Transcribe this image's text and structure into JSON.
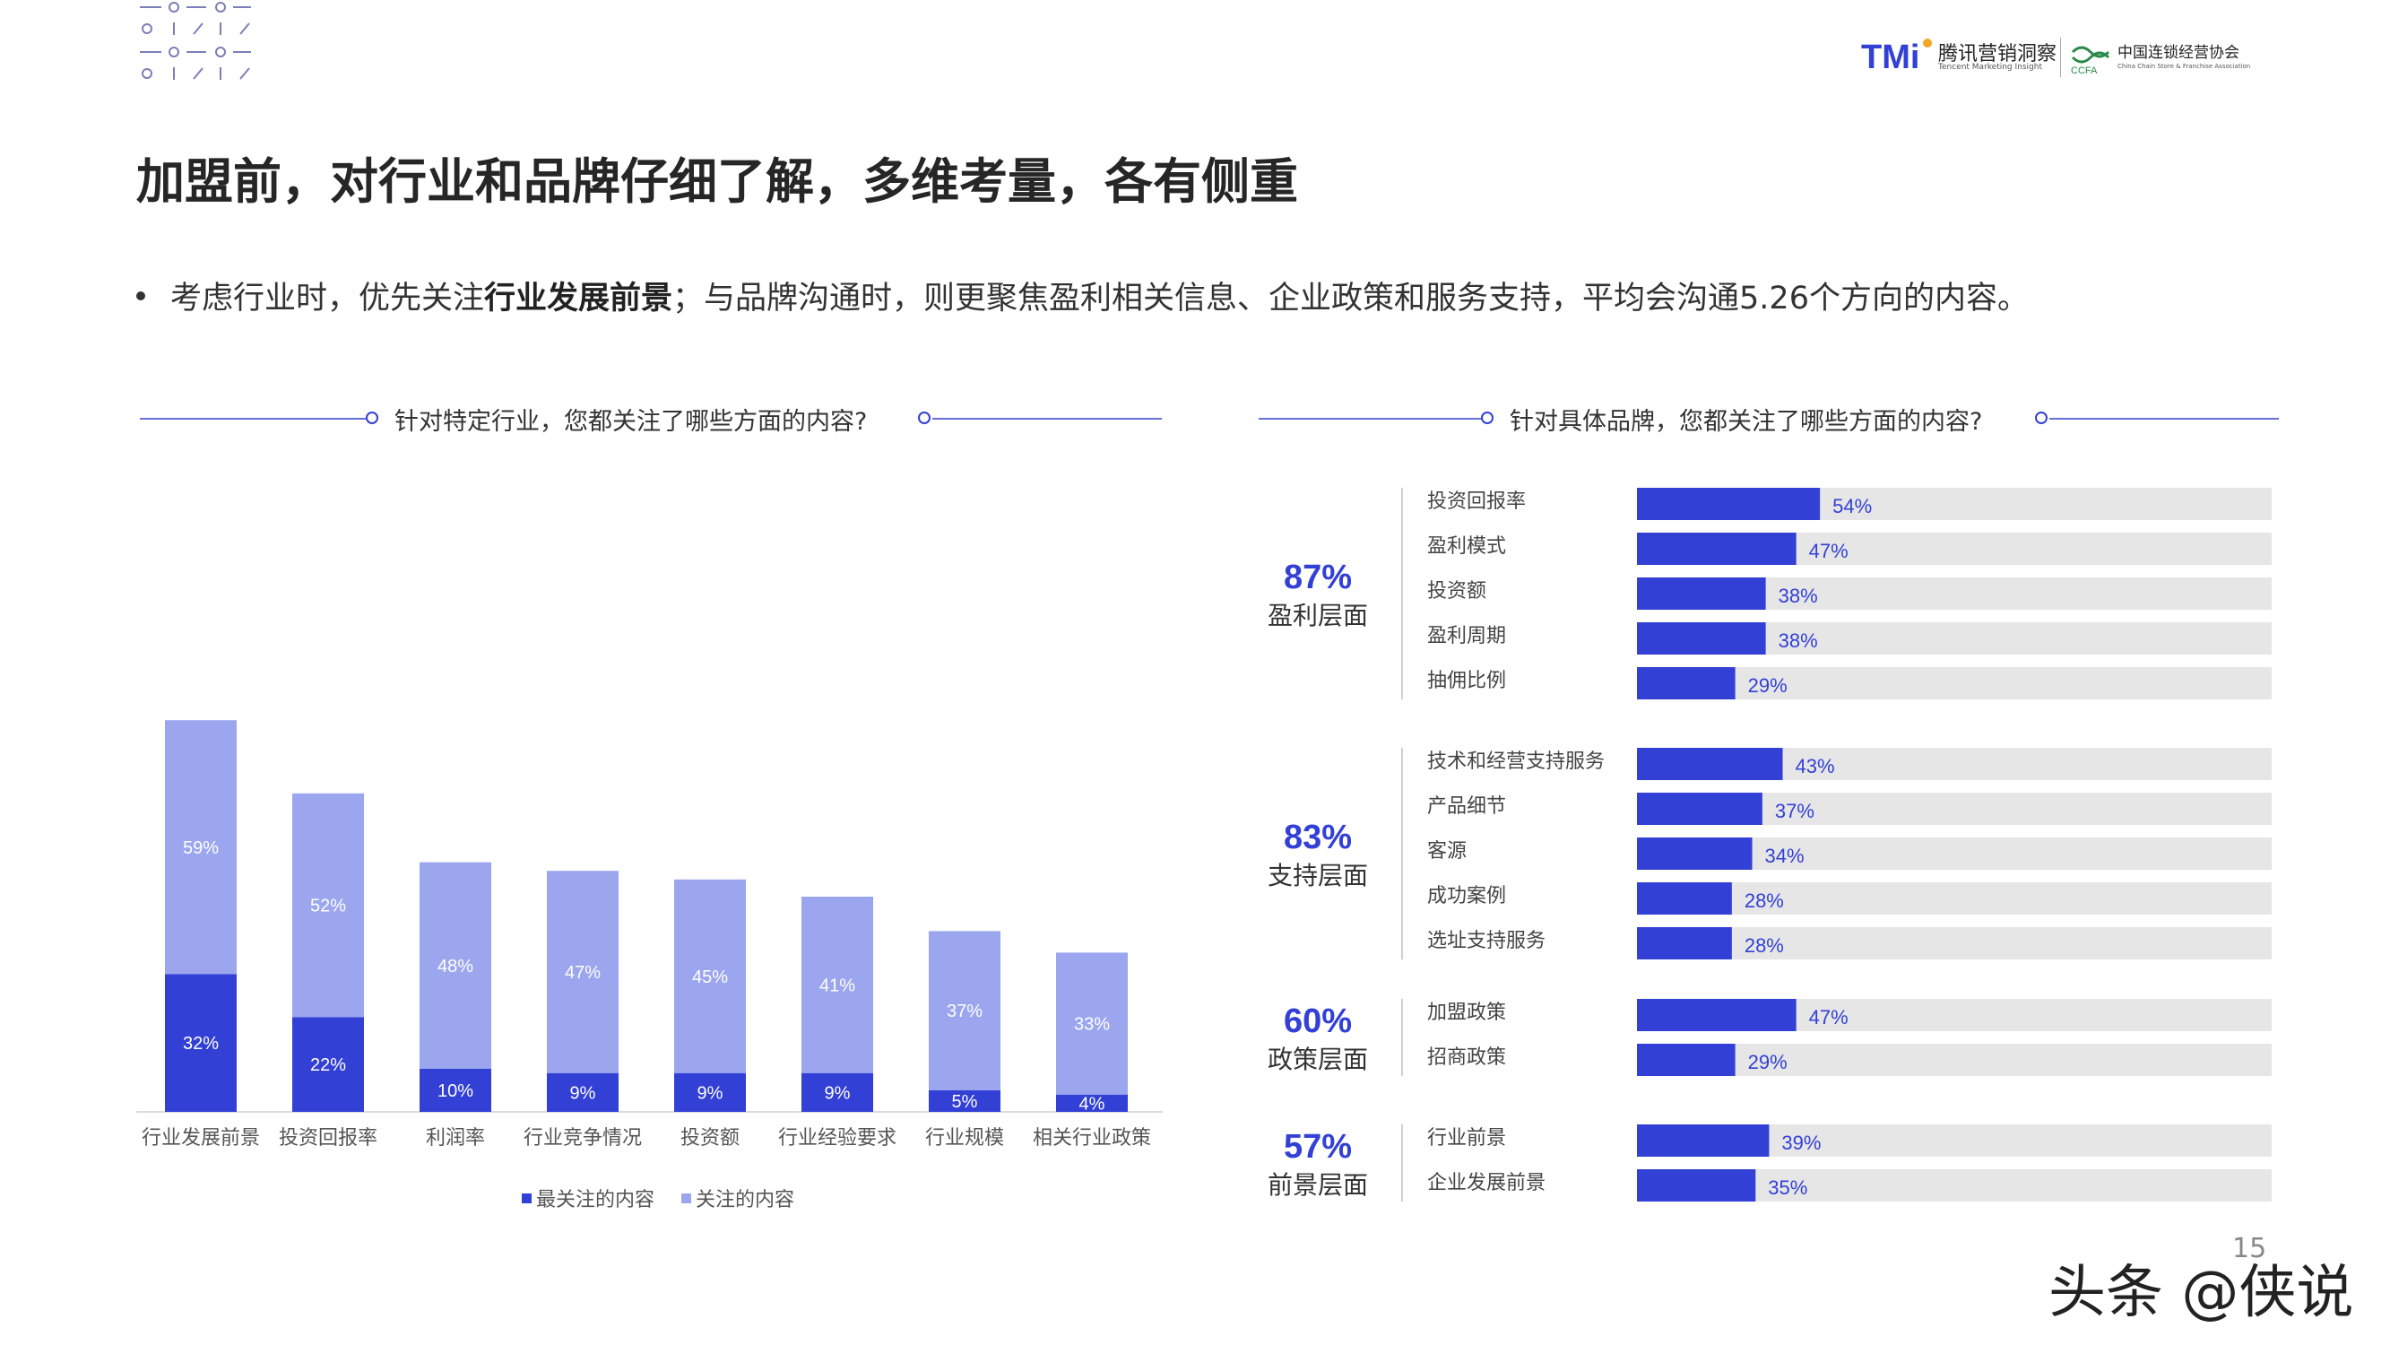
{
  "logos": {
    "tmi_mark": "TMi",
    "tmi_cn": "腾讯营销洞察",
    "tmi_en": "Tencent Marketing Insight",
    "ccfa_mark": "CCFA",
    "ccfa_cn": "中国连锁经营协会",
    "ccfa_en": "China Chain Store & Franchise Association"
  },
  "title": "加盟前，对行业和品牌仔细了解，多维考量，各有侧重",
  "bullet": {
    "part1": "考虑行业时，优先关注",
    "bold": "行业发展前景",
    "part2": "；与品牌沟通时，则更聚焦盈利相关信息、企业政策和服务支持，平均会沟通5.26个方向的内容。"
  },
  "page_number": "15",
  "watermark": "头条 @侠说",
  "colors": {
    "dark_blue": "#3340d6",
    "light_blue": "#9ca6ef",
    "track": "#e6e6e6",
    "accent_text": "#3340d6"
  },
  "chart_data": [
    {
      "type": "bar",
      "stacked": true,
      "title": "针对特定行业，您都关注了哪些方面的内容?",
      "categories": [
        "行业发展前景",
        "投资回报率",
        "利润率",
        "行业竞争情况",
        "投资额",
        "行业经验要求",
        "行业规模",
        "相关行业政策"
      ],
      "series": [
        {
          "name": "最关注的内容",
          "color": "#3340d6",
          "values": [
            32,
            22,
            10,
            9,
            9,
            9,
            5,
            4
          ]
        },
        {
          "name": "关注的内容",
          "color": "#9ca6ef",
          "values": [
            59,
            52,
            48,
            47,
            45,
            41,
            37,
            33
          ]
        }
      ],
      "value_suffix": "%",
      "legend_position": "bottom"
    },
    {
      "type": "bar",
      "orientation": "horizontal",
      "title": "针对具体品牌，您都关注了哪些方面的内容?",
      "value_suffix": "%",
      "groups": [
        {
          "pct": "87%",
          "label": "盈利层面",
          "items": [
            {
              "label": "投资回报率",
              "value": 54
            },
            {
              "label": "盈利模式",
              "value": 47
            },
            {
              "label": "投资额",
              "value": 38
            },
            {
              "label": "盈利周期",
              "value": 38
            },
            {
              "label": "抽佣比例",
              "value": 29
            }
          ]
        },
        {
          "pct": "83%",
          "label": "支持层面",
          "items": [
            {
              "label": "技术和经营支持服务",
              "value": 43
            },
            {
              "label": "产品细节",
              "value": 37
            },
            {
              "label": "客源",
              "value": 34
            },
            {
              "label": "成功案例",
              "value": 28
            },
            {
              "label": "选址支持服务",
              "value": 28
            }
          ]
        },
        {
          "pct": "60%",
          "label": "政策层面",
          "items": [
            {
              "label": "加盟政策",
              "value": 47
            },
            {
              "label": "招商政策",
              "value": 29
            }
          ]
        },
        {
          "pct": "57%",
          "label": "前景层面",
          "items": [
            {
              "label": "行业前景",
              "value": 39
            },
            {
              "label": "企业发展前景",
              "value": 35
            }
          ]
        }
      ]
    }
  ]
}
